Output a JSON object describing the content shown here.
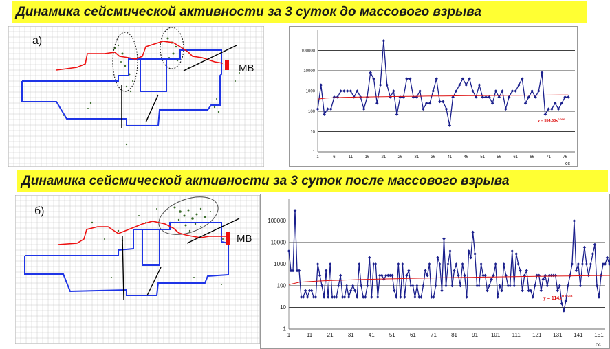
{
  "banners": {
    "before": "Динамика  сейсмической активности за 3 суток до массового взрыва",
    "after": "Динамика  сейсмической активности за 3 суток после массового взрыва"
  },
  "colors": {
    "banner": "#ffff33",
    "contour": "#1f35e6",
    "red_line": "#ee1111",
    "series": "#1a1f8c",
    "trend": "#dd1111",
    "grid": "#c8c8c8"
  },
  "maps": [
    {
      "label": "а)",
      "marker": "МВ"
    },
    {
      "label": "б)",
      "marker": "МВ"
    }
  ],
  "chart_data": [
    {
      "type": "line",
      "yscale": "log",
      "ylim": [
        1,
        1000000
      ],
      "yticks": [
        "1",
        "10",
        "100",
        "1000",
        "10000",
        "100000"
      ],
      "xticks": [
        "1",
        "6",
        "11",
        "16",
        "21",
        "26",
        "31",
        "36",
        "41",
        "46",
        "51",
        "56",
        "61",
        "66",
        "71",
        "76"
      ],
      "xunit": "сс",
      "xlim": [
        1,
        79
      ],
      "trendline_label": "y = 554.63x",
      "trendline_exp": "0.006",
      "trend": [
        400,
        640
      ],
      "series": [
        {
          "values": [
            130,
            2000,
            70,
            130,
            130,
            500,
            500,
            1000,
            1000,
            1000,
            1000,
            500,
            1000,
            500,
            130,
            500,
            8000,
            4000,
            250,
            2000,
            300000,
            2000,
            500,
            1000,
            70,
            500,
            500,
            4000,
            4000,
            500,
            500,
            1000,
            130,
            250,
            250,
            1000,
            4000,
            300,
            300,
            130,
            20,
            500,
            1000,
            2000,
            4000,
            2000,
            4000,
            1000,
            500,
            2000,
            500,
            500,
            500,
            250,
            1000,
            500,
            1000,
            130,
            500,
            1000,
            1000,
            2000,
            4000,
            250,
            500,
            1000,
            500,
            1000,
            8000,
            70,
            130,
            130,
            250,
            130,
            250,
            500,
            500
          ]
        }
      ]
    },
    {
      "type": "line",
      "yscale": "log",
      "ylim": [
        1,
        1000000
      ],
      "yticks": [
        "1",
        "10",
        "100",
        "1000",
        "10000",
        "100000"
      ],
      "xticks": [
        "1",
        "11",
        "21",
        "31",
        "41",
        "51",
        "61",
        "71",
        "81",
        "91",
        "101",
        "111",
        "121",
        "131",
        "141",
        "151"
      ],
      "xunit": "сс",
      "xlim": [
        1,
        154
      ],
      "trendline_label": "y = 114x",
      "trendline_exp": "0.1608",
      "trend": [
        114,
        300
      ],
      "series": [
        {
          "values": [
            4000,
            500,
            500,
            300000,
            500,
            500,
            30,
            30,
            60,
            30,
            60,
            60,
            30,
            30,
            1000,
            300,
            100,
            30,
            500,
            30,
            1000,
            30,
            30,
            30,
            100,
            300,
            30,
            30,
            100,
            30,
            60,
            100,
            60,
            30,
            1000,
            100,
            30,
            30,
            100,
            2000,
            30,
            1000,
            1000,
            30,
            300,
            300,
            200,
            300,
            300,
            300,
            300,
            60,
            30,
            1000,
            30,
            1000,
            30,
            300,
            500,
            100,
            100,
            30,
            100,
            30,
            30,
            100,
            500,
            300,
            1000,
            30,
            30,
            100,
            2000,
            1000,
            60,
            15000,
            100,
            1000,
            4000,
            100,
            500,
            1000,
            300,
            100,
            1000,
            300,
            30,
            4000,
            2000,
            30000,
            3000,
            100,
            100,
            1000,
            300,
            300,
            60,
            100,
            200,
            300,
            1000,
            30,
            100,
            60,
            1000,
            300,
            100,
            100,
            4000,
            100,
            3000,
            1000,
            500,
            60,
            300,
            500,
            60,
            60,
            30,
            100,
            300,
            300,
            60,
            200,
            300,
            100,
            300,
            300,
            300,
            300,
            60,
            100,
            15,
            7,
            20,
            100,
            300,
            1000,
            100000,
            500,
            1000,
            100,
            1000,
            6000,
            1000,
            300,
            1000,
            3000,
            8000,
            100,
            30,
            300,
            1000,
            1000,
            2000,
            1000,
            4000
          ]
        }
      ]
    }
  ]
}
